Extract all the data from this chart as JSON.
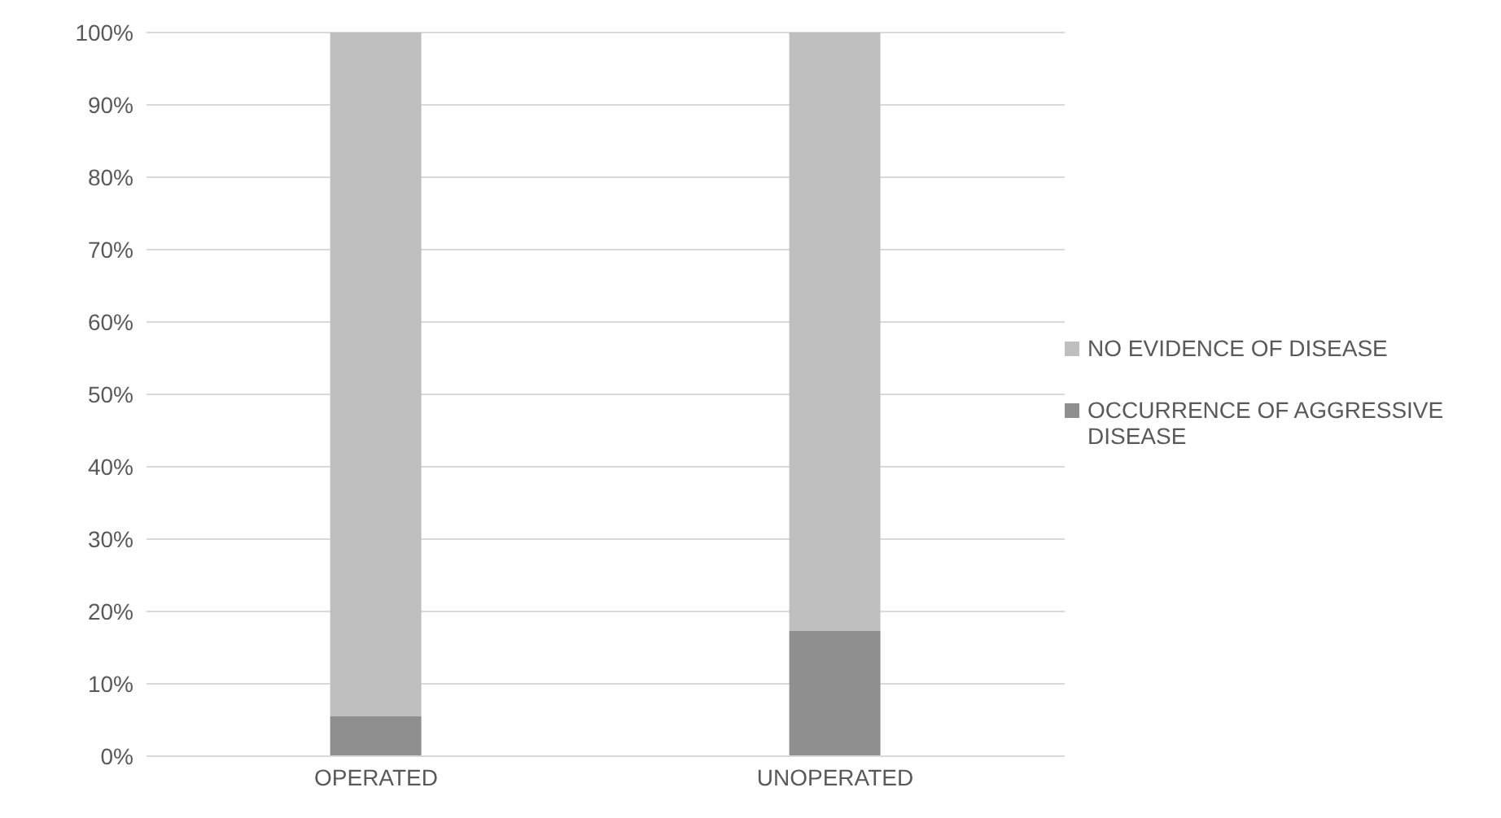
{
  "chart_data": {
    "type": "bar",
    "stacked": true,
    "categories": [
      "OPERATED",
      "UNOPERATED"
    ],
    "series": [
      {
        "name": "OCCURRENCE OF AGGRESSIVE DISEASE",
        "color": "#8f8f8f",
        "values": [
          5.5,
          17.3
        ]
      },
      {
        "name": "NO EVIDENCE OF DISEASE",
        "color": "#bfbfbf",
        "values": [
          94.5,
          82.7
        ]
      }
    ],
    "ylim": [
      0,
      100
    ],
    "yticks": [
      {
        "value": 0,
        "label": "0%"
      },
      {
        "value": 10,
        "label": "10%"
      },
      {
        "value": 20,
        "label": "20%"
      },
      {
        "value": 30,
        "label": "30%"
      },
      {
        "value": 40,
        "label": "40%"
      },
      {
        "value": 50,
        "label": "50%"
      },
      {
        "value": 60,
        "label": "60%"
      },
      {
        "value": 70,
        "label": "70%"
      },
      {
        "value": 80,
        "label": "80%"
      },
      {
        "value": 90,
        "label": "90%"
      },
      {
        "value": 100,
        "label": "100%"
      }
    ],
    "grid": "y",
    "legend": "right"
  }
}
